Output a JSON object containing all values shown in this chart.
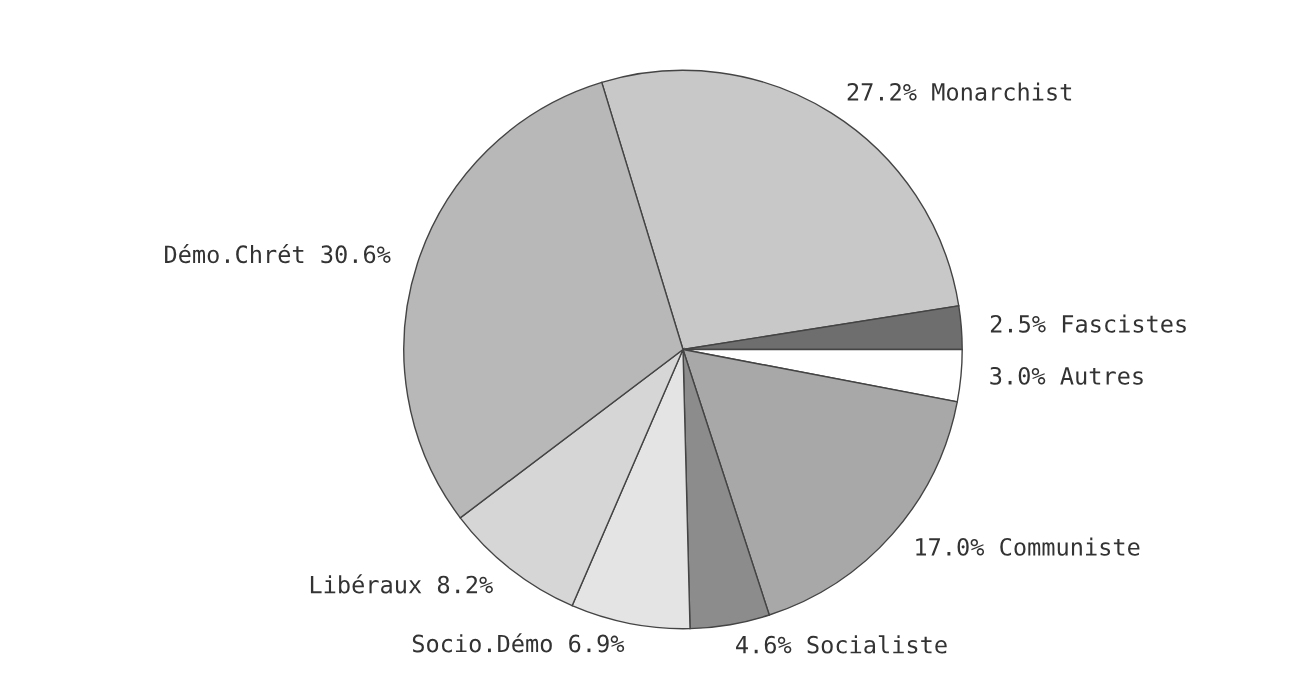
{
  "chart_data": {
    "type": "pie",
    "categories": [
      "Monarchist",
      "Fascistes",
      "Autres",
      "Communiste",
      "Socialiste",
      "Socio.Démo",
      "Libéraux",
      "Démo.Chrét"
    ],
    "values": [
      27.2,
      2.5,
      3.0,
      17.0,
      4.6,
      6.9,
      8.2,
      30.6
    ],
    "value_labels": [
      "27.2%",
      "2.5%",
      "3.0%",
      "17.0%",
      "4.6%",
      "6.9%",
      "8.2%",
      "30.6%"
    ],
    "colors": [
      "#c8c8c8",
      "#6e6e6e",
      "#ffffff",
      "#a8a8a8",
      "#8c8c8c",
      "#e4e4e4",
      "#d6d6d6",
      "#b8b8b8"
    ]
  }
}
